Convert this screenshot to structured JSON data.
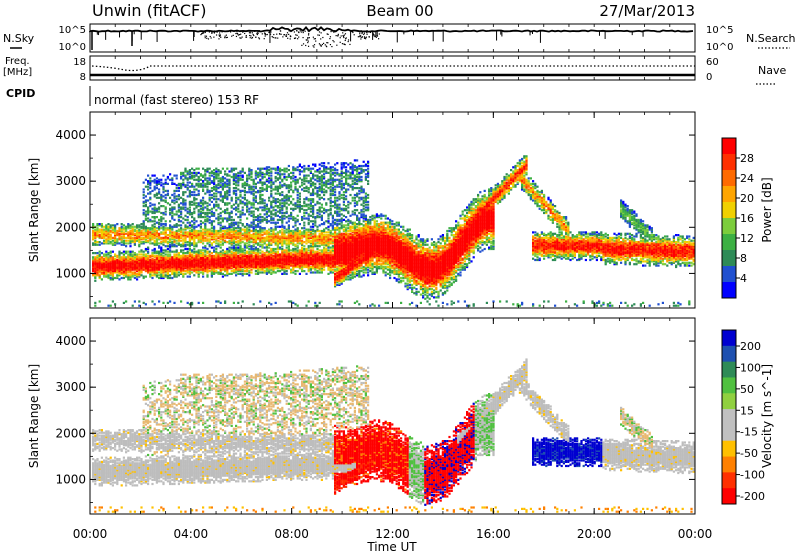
{
  "header": {
    "title_left": "Unwin (fitACF)",
    "title_center": "Beam 00",
    "title_right": "27/Mar/2013"
  },
  "summary": {
    "nsky_label": "N.Sky",
    "nsky_ticks": [
      "10^5",
      "10^0"
    ],
    "nsearch_label": "N.Search",
    "nsearch_ticks": [
      "10^5",
      "10^0"
    ],
    "freq_label_1": "Freq.",
    "freq_label_2": "[MHz]",
    "freq_ticks": [
      "18",
      "8"
    ],
    "nave_label": "Nave",
    "nave_ticks": [
      "60",
      "0"
    ],
    "cpid_label": "CPID",
    "cpid_text": "normal (fast stereo) 153 RF"
  },
  "colors": {
    "power": [
      "#0000ff",
      "#2050d0",
      "#2e8b57",
      "#3cb043",
      "#7ccd3c",
      "#f0d000",
      "#ffa500",
      "#ff6a00",
      "#ff3000",
      "#ff0000"
    ],
    "velocity": [
      "#0000d0",
      "#1e50b0",
      "#2e8b57",
      "#50c040",
      "#90d040",
      "#c0c0c0",
      "#c0c0c0",
      "#ffc000",
      "#ff8000",
      "#ff3000",
      "#ff0000"
    ]
  },
  "chart_data": [
    {
      "type": "heatmap",
      "name": "power",
      "ylabel": "Slant Range [km]",
      "yticks": [
        "1000",
        "2000",
        "3000",
        "4000"
      ],
      "ylim": [
        250,
        4500
      ],
      "colorbar_label": "Power [dB]",
      "colorbar_ticks": [
        "4",
        "8",
        "12",
        "16",
        "20",
        "24",
        "28"
      ],
      "colorbar_range": [
        0,
        32
      ]
    },
    {
      "type": "heatmap",
      "name": "velocity",
      "ylabel": "Slant Range [km]",
      "yticks": [
        "1000",
        "2000",
        "3000",
        "4000"
      ],
      "ylim": [
        250,
        4500
      ],
      "colorbar_label": "Velocity [m s^-1]",
      "colorbar_ticks": [
        "200",
        "100",
        "50",
        "15",
        "-15",
        "-50",
        "-100",
        "-200"
      ]
    }
  ],
  "xaxis": {
    "label": "Time UT",
    "ticks": [
      "00:00",
      "04:00",
      "08:00",
      "12:00",
      "16:00",
      "20:00",
      "00:00"
    ],
    "hours": [
      0,
      4,
      8,
      12,
      16,
      20,
      24
    ]
  }
}
